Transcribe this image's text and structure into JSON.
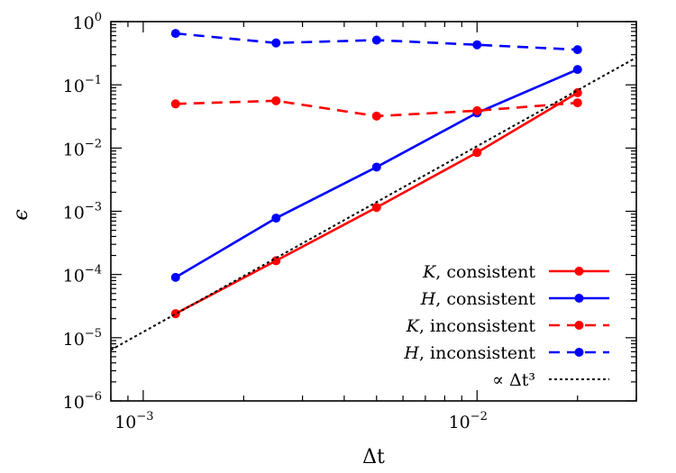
{
  "chart_data": {
    "type": "line",
    "xscale": "log",
    "yscale": "log",
    "xlim": [
      0.0008,
      0.03
    ],
    "ylim": [
      1e-06,
      1
    ],
    "xlabel": "Δt",
    "ylabel": "ϵ",
    "grid": false,
    "legend_position": "bottom-right",
    "xticks": [
      {
        "value": 0.001,
        "base": "10",
        "exp": "−3"
      },
      {
        "value": 0.01,
        "base": "10",
        "exp": "−2"
      }
    ],
    "yticks": [
      {
        "value": 1e-06,
        "base": "10",
        "exp": "−6"
      },
      {
        "value": 1e-05,
        "base": "10",
        "exp": "−5"
      },
      {
        "value": 0.0001,
        "base": "10",
        "exp": "−4"
      },
      {
        "value": 0.001,
        "base": "10",
        "exp": "−3"
      },
      {
        "value": 0.01,
        "base": "10",
        "exp": "−2"
      },
      {
        "value": 0.1,
        "base": "10",
        "exp": "−1"
      },
      {
        "value": 1,
        "base": "10",
        "exp": "0"
      }
    ],
    "x": [
      0.00125,
      0.0025,
      0.005,
      0.01,
      0.02
    ],
    "series": [
      {
        "name": "K, consistent",
        "symbol": "K",
        "rest": ", consistent",
        "color": "#ff0000",
        "dash": "solid",
        "markers": true,
        "values": [
          2.4e-05,
          0.000165,
          0.00115,
          0.0085,
          0.075
        ]
      },
      {
        "name": "H, consistent",
        "symbol": "H",
        "rest": ", consistent",
        "color": "#0000ff",
        "dash": "solid",
        "markers": true,
        "values": [
          9e-05,
          0.00078,
          0.005,
          0.036,
          0.175
        ]
      },
      {
        "name": "K, inconsistent",
        "symbol": "K",
        "rest": ", inconsistent",
        "color": "#ff0000",
        "dash": "dashed",
        "markers": true,
        "values": [
          0.05,
          0.056,
          0.032,
          0.039,
          0.052
        ]
      },
      {
        "name": "H, inconsistent",
        "symbol": "H",
        "rest": ", inconsistent",
        "color": "#0000ff",
        "dash": "dashed",
        "markers": true,
        "values": [
          0.65,
          0.46,
          0.51,
          0.43,
          0.36
        ]
      },
      {
        "name": "∝ Δt³",
        "symbol": "",
        "rest": "∝ Δt³",
        "color": "#000000",
        "dash": "dotted",
        "markers": false,
        "x": [
          0.0008,
          0.03
        ],
        "values": [
          6.4e-06,
          0.27
        ]
      }
    ]
  }
}
